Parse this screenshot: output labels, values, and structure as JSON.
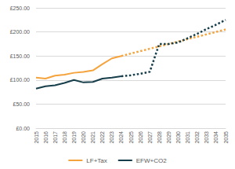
{
  "chart_data": {
    "type": "line",
    "categories": [
      "2015",
      "2016",
      "2017",
      "2018",
      "2019",
      "2020",
      "2021",
      "2022",
      "2023",
      "2024",
      "2025",
      "2026",
      "2027",
      "2028",
      "2029",
      "2030",
      "2031",
      "2032",
      "2033",
      "2034",
      "2035"
    ],
    "series": [
      {
        "name": "LF+Tax",
        "color": "#F5A33C",
        "line_style": "solid",
        "values": [
          105,
          103,
          109,
          111,
          115,
          117,
          120,
          133,
          145,
          150,
          null,
          null,
          null,
          null,
          null,
          null,
          null,
          null,
          null,
          null,
          null
        ]
      },
      {
        "name": "EFW+CO2",
        "color": "#163E4B",
        "line_style": "solid",
        "values": [
          82,
          87,
          89,
          94,
          100,
          95,
          96,
          103,
          105,
          108,
          null,
          null,
          null,
          null,
          null,
          null,
          null,
          null,
          null,
          null,
          null
        ]
      },
      {
        "name": "LF+Tax",
        "color": "#F5A33C",
        "line_style": "dotted",
        "values": [
          null,
          null,
          null,
          null,
          null,
          null,
          null,
          null,
          null,
          150,
          155,
          160,
          165,
          170,
          175,
          180,
          185,
          190,
          195,
          200,
          205
        ]
      },
      {
        "name": "EFW+CO2",
        "color": "#163E4B",
        "line_style": "dotted",
        "values": [
          null,
          null,
          null,
          null,
          null,
          null,
          null,
          null,
          null,
          108,
          110,
          113,
          117,
          175,
          175,
          178,
          187,
          196,
          206,
          215,
          225
        ]
      }
    ],
    "ylim": [
      0,
      250
    ],
    "yticks": [
      {
        "value": 0,
        "label": "£0.00"
      },
      {
        "value": 50,
        "label": "£50.00"
      },
      {
        "value": 100,
        "label": "£100.00"
      },
      {
        "value": 150,
        "label": "£150.00"
      },
      {
        "value": 200,
        "label": "£200.00"
      },
      {
        "value": 250,
        "label": "£250.00"
      }
    ],
    "grid": true,
    "legend": "bottom"
  }
}
